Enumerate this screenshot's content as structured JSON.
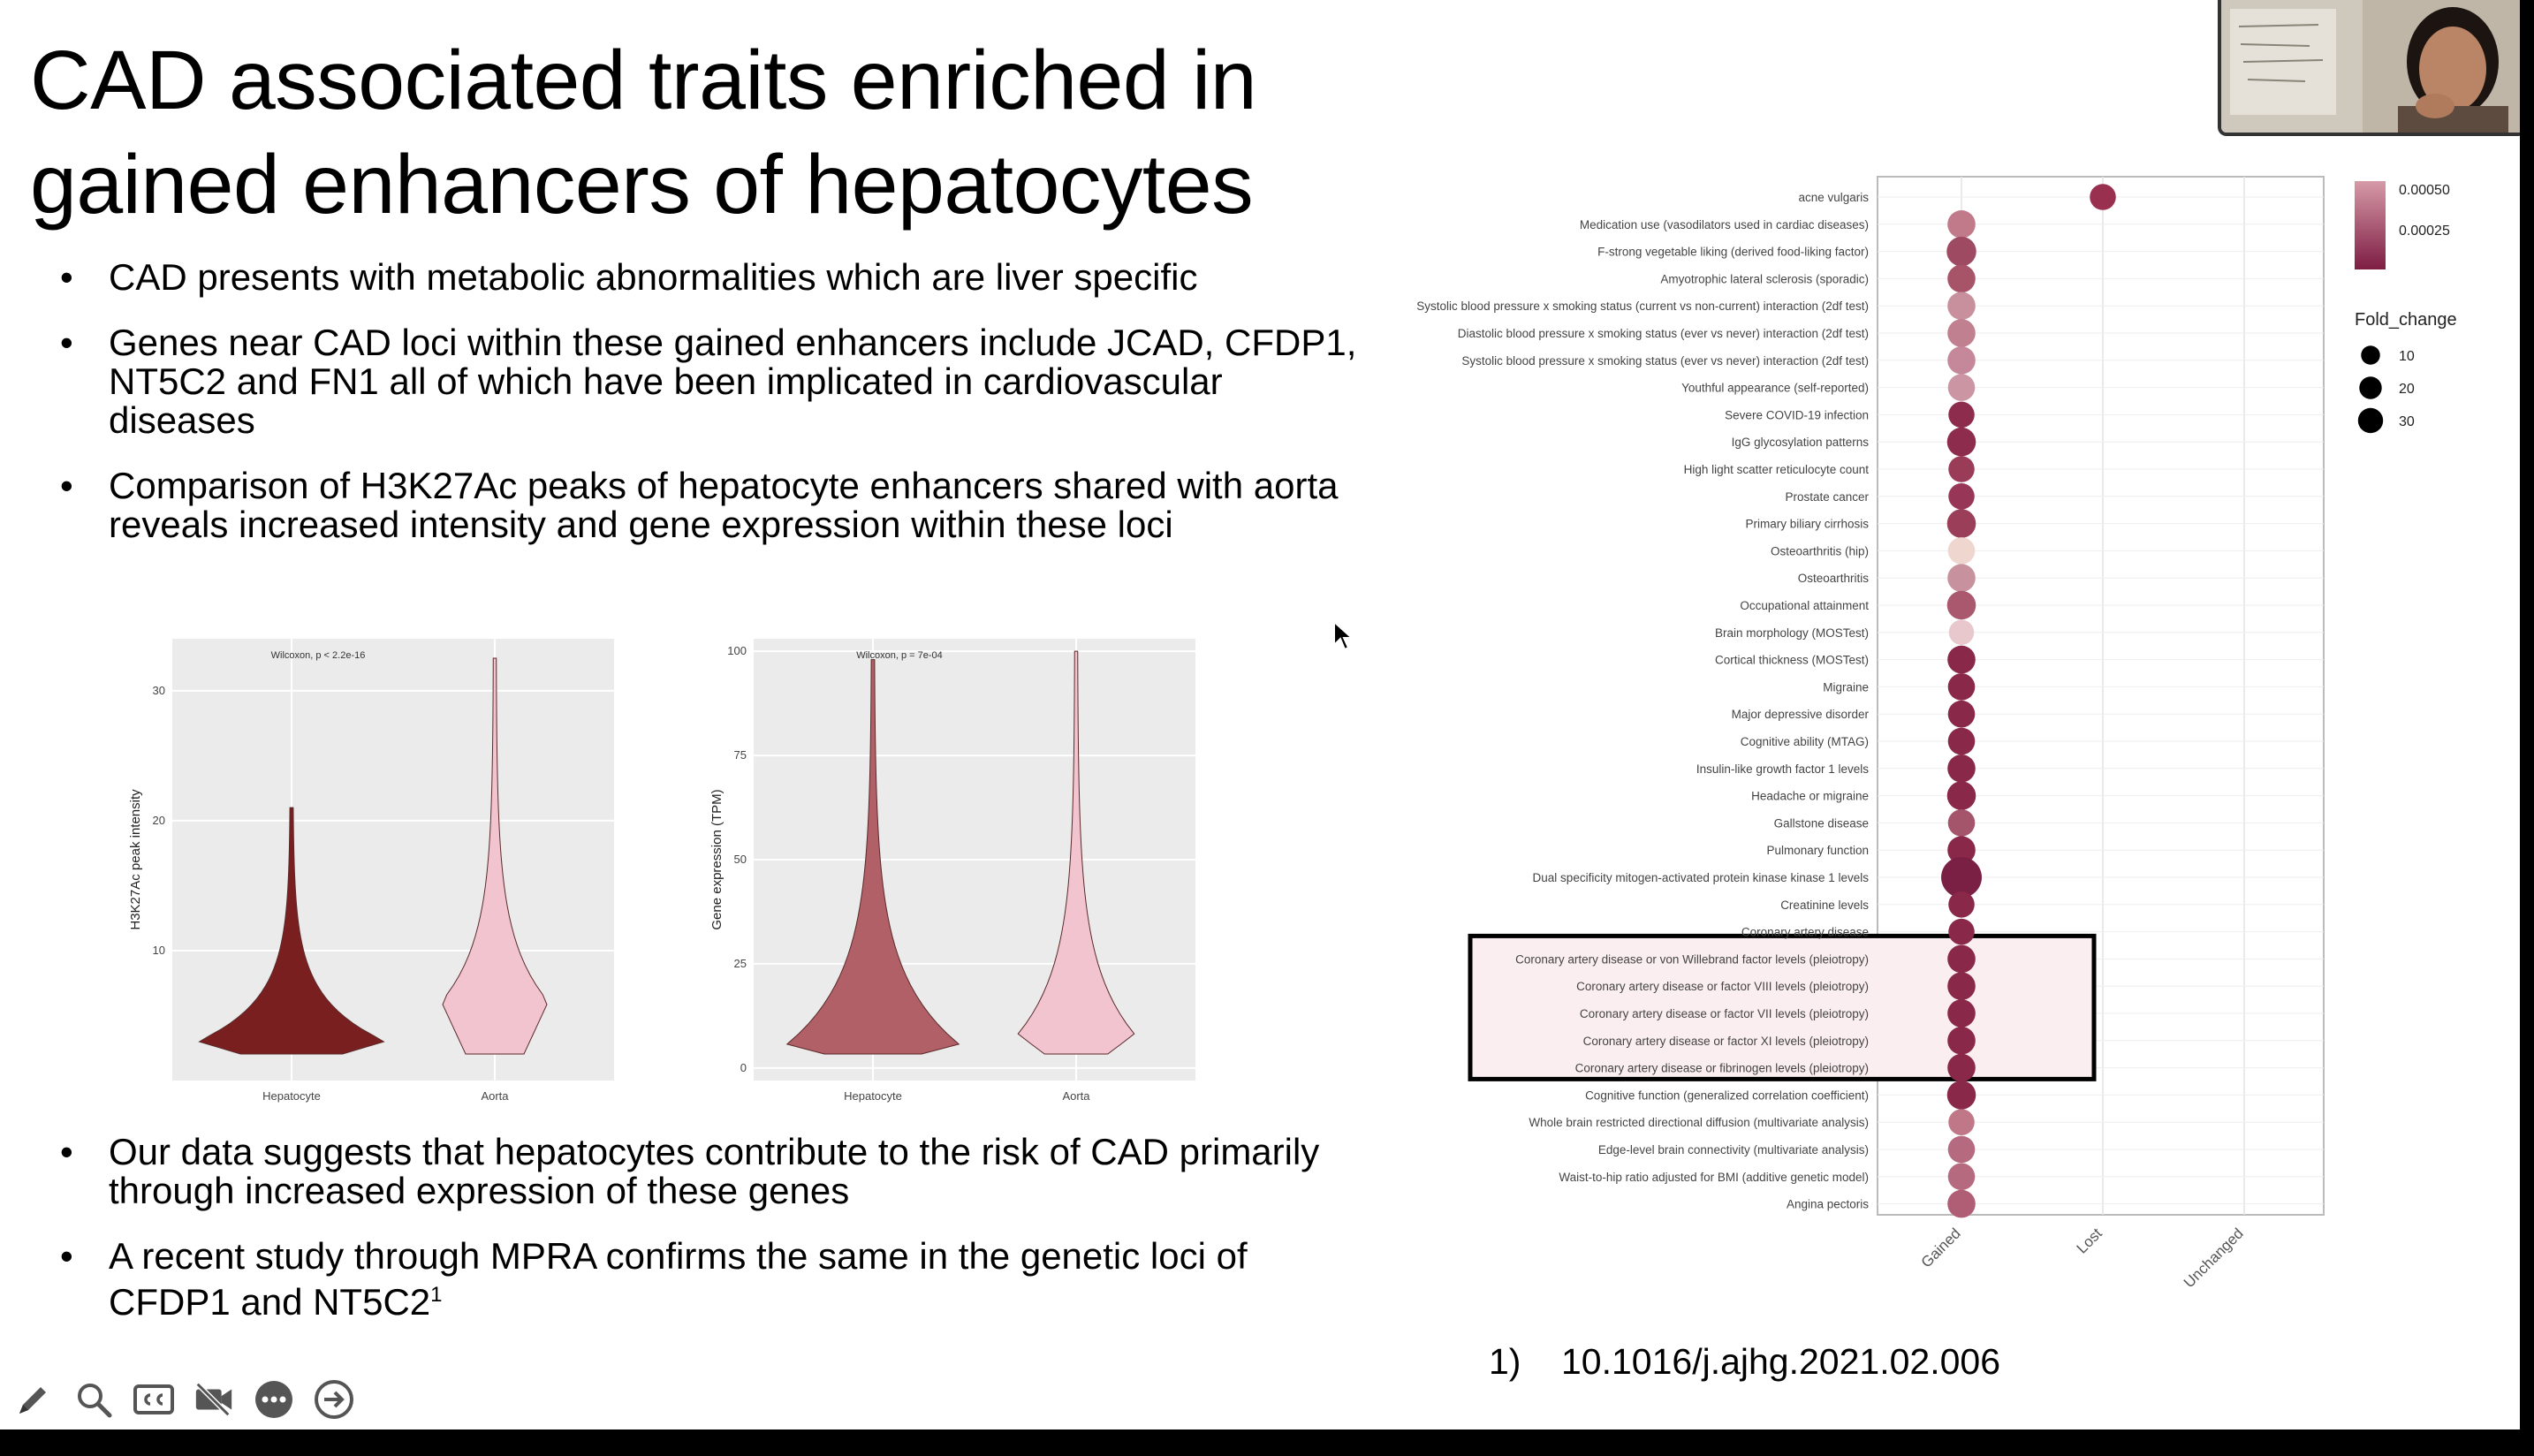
{
  "slide": {
    "title": "CAD associated traits enriched in gained enhancers of hepatocytes",
    "bullets_top": [
      "CAD presents with metabolic abnormalities which are liver specific",
      "Genes near CAD loci within these gained enhancers include JCAD, CFDP1, NT5C2 and FN1 all of which have been implicated in cardiovascular diseases",
      "Comparison of H3K27Ac peaks of hepatocyte enhancers shared with aorta reveals increased intensity and gene expression within these loci"
    ],
    "bullets_bottom": [
      "Our data suggests that hepatocytes contribute to the risk of CAD primarily through increased expression of these genes",
      "A recent study through MPRA confirms the same in the genetic loci of CFDP1 and NT5C2"
    ],
    "footnote_superscript": "1",
    "reference": {
      "number": "1)",
      "doi": "10.1016/j.ajhg.2021.02.006"
    }
  },
  "chart_data": [
    {
      "type": "violin",
      "subtitle": "Wilcoxon, p < 2.2e-16",
      "ylabel": "H3K27Ac peak intensity",
      "xlabel": "",
      "categories": [
        "Hepatocyte",
        "Aorta"
      ],
      "yticks": [
        10,
        20,
        30
      ],
      "ylim": [
        0,
        34
      ],
      "series": [
        {
          "name": "Hepatocyte",
          "median": 3,
          "max": 21,
          "color": "#7a1f1f"
        },
        {
          "name": "Aorta",
          "median": 6,
          "max": 32.5,
          "color": "#f2c4cf"
        }
      ]
    },
    {
      "type": "violin",
      "subtitle": "Wilcoxon, p = 7e-04",
      "ylabel": "Gene expression (TPM)",
      "xlabel": "",
      "categories": [
        "Hepatocyte",
        "Aorta"
      ],
      "yticks": [
        0,
        25,
        50,
        75,
        100
      ],
      "ylim": [
        -3,
        103
      ],
      "series": [
        {
          "name": "Hepatocyte",
          "median": 5,
          "max": 98,
          "color": "#b06066"
        },
        {
          "name": "Aorta",
          "median": 8,
          "max": 100,
          "color": "#f2c4cf"
        }
      ]
    },
    {
      "type": "scatter",
      "x_categories": [
        "Gained",
        "Lost",
        "Unchanged"
      ],
      "legend_color_title": "",
      "legend_color_ticks": [
        "0.00050",
        "0.00025"
      ],
      "legend_size_title": "Fold_change",
      "legend_size_ticks": [
        "10",
        "20",
        "30"
      ],
      "legend_placement": "right",
      "grid": true,
      "highlight_box_traits": [
        "Coronary artery disease or von Willebrand factor levels (pleiotropy)",
        "Coronary artery disease or factor XI levels (pleiotropy)"
      ],
      "points": [
        {
          "trait": "acne vulgaris",
          "x": "Lost",
          "fold_change": 8,
          "color": "#9a3050"
        },
        {
          "trait": "Medication use (vasodilators used in cardiac diseases)",
          "x": "Gained",
          "fold_change": 10,
          "color": "#c07a8a"
        },
        {
          "trait": "F-strong vegetable liking (derived food-liking factor)",
          "x": "Gained",
          "fold_change": 12,
          "color": "#9e4a62"
        },
        {
          "trait": "Amyotrophic lateral sclerosis (sporadic)",
          "x": "Gained",
          "fold_change": 10,
          "color": "#a85468"
        },
        {
          "trait": "Systolic blood pressure x smoking status (current vs non-current) interaction (2df test)",
          "x": "Gained",
          "fold_change": 10,
          "color": "#c88f9c"
        },
        {
          "trait": "Diastolic blood pressure x smoking status (ever vs never) interaction (2df test)",
          "x": "Gained",
          "fold_change": 10,
          "color": "#c08090"
        },
        {
          "trait": "Systolic blood pressure x smoking status (ever vs never) interaction (2df test)",
          "x": "Gained",
          "fold_change": 10,
          "color": "#c4889a"
        },
        {
          "trait": "Youthful appearance (self-reported)",
          "x": "Gained",
          "fold_change": 9,
          "color": "#cc95a3"
        },
        {
          "trait": "Severe COVID-19 infection",
          "x": "Gained",
          "fold_change": 8,
          "color": "#8e2c4d"
        },
        {
          "trait": "IgG glycosylation patterns",
          "x": "Gained",
          "fold_change": 11,
          "color": "#8e2c4d"
        },
        {
          "trait": "High light scatter reticulocyte count",
          "x": "Gained",
          "fold_change": 8,
          "color": "#9a3b58"
        },
        {
          "trait": "Prostate cancer",
          "x": "Gained",
          "fold_change": 8,
          "color": "#973656"
        },
        {
          "trait": "Primary biliary cirrhosis",
          "x": "Gained",
          "fold_change": 11,
          "color": "#9a3e5a"
        },
        {
          "trait": "Osteoarthritis (hip)",
          "x": "Gained",
          "fold_change": 9,
          "color": "#efd6cf"
        },
        {
          "trait": "Osteoarthritis",
          "x": "Gained",
          "fold_change": 10,
          "color": "#c8919e"
        },
        {
          "trait": "Occupational attainment",
          "x": "Gained",
          "fold_change": 11,
          "color": "#a9586e"
        },
        {
          "trait": "Brain morphology (MOSTest)",
          "x": "Gained",
          "fold_change": 7,
          "color": "#e8c7cd"
        },
        {
          "trait": "Cortical thickness (MOSTest)",
          "x": "Gained",
          "fold_change": 10,
          "color": "#8a2849"
        },
        {
          "trait": "Migraine",
          "x": "Gained",
          "fold_change": 9,
          "color": "#8a2849"
        },
        {
          "trait": "Major depressive disorder",
          "x": "Gained",
          "fold_change": 9,
          "color": "#8a2849"
        },
        {
          "trait": "Cognitive ability (MTAG)",
          "x": "Gained",
          "fold_change": 9,
          "color": "#8a2849"
        },
        {
          "trait": "Insulin-like growth factor 1 levels",
          "x": "Gained",
          "fold_change": 10,
          "color": "#8a2849"
        },
        {
          "trait": "Headache or migraine",
          "x": "Gained",
          "fold_change": 11,
          "color": "#8a2849"
        },
        {
          "trait": "Gallstone disease",
          "x": "Gained",
          "fold_change": 9,
          "color": "#a4556c"
        },
        {
          "trait": "Pulmonary function",
          "x": "Gained",
          "fold_change": 10,
          "color": "#8a2849"
        },
        {
          "trait": "Dual specificity mitogen-activated protein kinase kinase 1 levels",
          "x": "Gained",
          "fold_change": 30,
          "color": "#7a2045"
        },
        {
          "trait": "Creatinine levels",
          "x": "Gained",
          "fold_change": 8,
          "color": "#8a2849"
        },
        {
          "trait": "Coronary artery disease",
          "x": "Gained",
          "fold_change": 8,
          "color": "#8a2849"
        },
        {
          "trait": "Coronary artery disease or von Willebrand factor levels (pleiotropy)",
          "x": "Gained",
          "fold_change": 10,
          "color": "#8a2849"
        },
        {
          "trait": "Coronary artery disease or factor VIII levels (pleiotropy)",
          "x": "Gained",
          "fold_change": 10,
          "color": "#8a2849"
        },
        {
          "trait": "Coronary artery disease or factor VII levels (pleiotropy)",
          "x": "Gained",
          "fold_change": 10,
          "color": "#8a2849"
        },
        {
          "trait": "Coronary artery disease or factor XI levels (pleiotropy)",
          "x": "Gained",
          "fold_change": 10,
          "color": "#8a2849"
        },
        {
          "trait": "Coronary artery disease or fibrinogen levels (pleiotropy)",
          "x": "Gained",
          "fold_change": 10,
          "color": "#8a2849"
        },
        {
          "trait": "Cognitive function (generalized correlation coefficient)",
          "x": "Gained",
          "fold_change": 11,
          "color": "#8a2849"
        },
        {
          "trait": "Whole brain restricted directional diffusion (multivariate analysis)",
          "x": "Gained",
          "fold_change": 8,
          "color": "#c07888"
        },
        {
          "trait": "Edge-level brain connectivity (multivariate analysis)",
          "x": "Gained",
          "fold_change": 9,
          "color": "#b56a80"
        },
        {
          "trait": "Waist-to-hip ratio adjusted for BMI (additive genetic model)",
          "x": "Gained",
          "fold_change": 9,
          "color": "#b56a80"
        },
        {
          "trait": "Angina pectoris",
          "x": "Gained",
          "fold_change": 10,
          "color": "#b05e76"
        }
      ]
    }
  ]
}
